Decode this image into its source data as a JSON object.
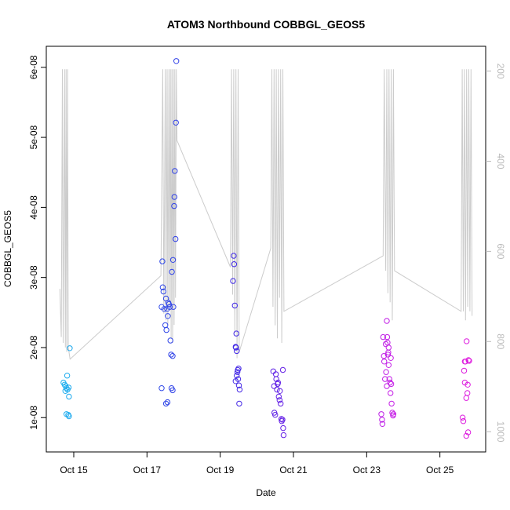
{
  "chart_data": {
    "type": "scatter",
    "title": "ATOM3 Northbound COBBGL_GEOS5",
    "xlabel": "Date",
    "ylabel": "COBBGL_GEOS5",
    "x_ticks": [
      "Oct 15",
      "Oct 17",
      "Oct 19",
      "Oct 21",
      "Oct 23",
      "Oct 25"
    ],
    "x_tick_days": [
      15,
      17,
      19,
      21,
      23,
      25
    ],
    "xlim_days": [
      14.25,
      26.25
    ],
    "y_ticks": [
      "1e-08",
      "2e-08",
      "3e-08",
      "4e-08",
      "5e-08",
      "6e-08"
    ],
    "y_tick_values": [
      1e-08,
      2e-08,
      3e-08,
      4e-08,
      5e-08,
      6e-08
    ],
    "ylim": [
      5.1e-09,
      6.3e-08
    ],
    "y2_ticks": [
      "200",
      "400",
      "600",
      "800",
      "1000"
    ],
    "y2_tick_values": [
      200,
      400,
      600,
      800,
      1000
    ],
    "y2lim": [
      1045,
      145
    ],
    "y2_reversed": true,
    "grid": false,
    "legend": "none",
    "point_color_by_time": [
      "#1ab0ee",
      "#2a4fe8",
      "#3c2be6",
      "#7a1ee6",
      "#c51ee6",
      "#e01ede"
    ],
    "line_color": "#cccccc",
    "series": [
      {
        "marker": "open-circle",
        "points": [
          [
            14.72,
            1.5e-08
          ],
          [
            14.75,
            1.47e-08
          ],
          [
            14.77,
            1.38e-08
          ],
          [
            14.78,
            1.45e-08
          ],
          [
            14.8,
            1.42e-08
          ],
          [
            14.8,
            1.05e-08
          ],
          [
            14.82,
            1.6e-08
          ],
          [
            14.83,
            1.4e-08
          ],
          [
            14.85,
            1.04e-08
          ],
          [
            14.86,
            1.43e-08
          ],
          [
            14.87,
            1.3e-08
          ],
          [
            14.87,
            1.02e-08
          ],
          [
            14.89,
            1.99e-08
          ],
          [
            17.4,
            2.58e-08
          ],
          [
            17.42,
            3.23e-08
          ],
          [
            17.43,
            2.86e-08
          ],
          [
            17.45,
            2.8e-08
          ],
          [
            17.47,
            2.55e-08
          ],
          [
            17.5,
            2.32e-08
          ],
          [
            17.52,
            2.7e-08
          ],
          [
            17.53,
            2.25e-08
          ],
          [
            17.55,
            2.55e-08
          ],
          [
            17.57,
            2.45e-08
          ],
          [
            17.58,
            2.64e-08
          ],
          [
            17.6,
            2.62e-08
          ],
          [
            17.62,
            2.58e-08
          ],
          [
            17.64,
            2.1e-08
          ],
          [
            17.66,
            1.9e-08
          ],
          [
            17.67,
            1.42e-08
          ],
          [
            17.68,
            3.08e-08
          ],
          [
            17.7,
            1.88e-08
          ],
          [
            17.71,
            3.25e-08
          ],
          [
            17.72,
            2.58e-08
          ],
          [
            17.74,
            4.02e-08
          ],
          [
            17.75,
            4.15e-08
          ],
          [
            17.76,
            4.52e-08
          ],
          [
            17.78,
            3.55e-08
          ],
          [
            17.79,
            5.21e-08
          ],
          [
            17.8,
            6.09e-08
          ],
          [
            17.4,
            1.42e-08
          ],
          [
            17.52,
            1.2e-08
          ],
          [
            17.56,
            1.22e-08
          ],
          [
            17.7,
            1.39e-08
          ],
          [
            19.35,
            2.95e-08
          ],
          [
            19.37,
            3.31e-08
          ],
          [
            19.38,
            3.19e-08
          ],
          [
            19.4,
            2.6e-08
          ],
          [
            19.42,
            2.01e-08
          ],
          [
            19.43,
            2e-08
          ],
          [
            19.44,
            2.2e-08
          ],
          [
            19.45,
            1.95e-08
          ],
          [
            19.45,
            1.6e-08
          ],
          [
            19.47,
            1.65e-08
          ],
          [
            19.48,
            1.68e-08
          ],
          [
            19.49,
            1.55e-08
          ],
          [
            19.5,
            1.7e-08
          ],
          [
            19.51,
            1.46e-08
          ],
          [
            19.53,
            1.4e-08
          ],
          [
            19.52,
            1.2e-08
          ],
          [
            19.42,
            1.52e-08
          ],
          [
            20.45,
            1.66e-08
          ],
          [
            20.47,
            1.45e-08
          ],
          [
            20.48,
            1.07e-08
          ],
          [
            20.5,
            1.04e-08
          ],
          [
            20.52,
            1.62e-08
          ],
          [
            20.53,
            1.55e-08
          ],
          [
            20.55,
            1.4e-08
          ],
          [
            20.57,
            1.48e-08
          ],
          [
            20.58,
            1.5e-08
          ],
          [
            20.6,
            1.3e-08
          ],
          [
            20.62,
            1.25e-08
          ],
          [
            20.63,
            1.38e-08
          ],
          [
            20.65,
            1.2e-08
          ],
          [
            20.67,
            9.8e-09
          ],
          [
            20.68,
            9.5e-09
          ],
          [
            20.7,
            9.7e-09
          ],
          [
            20.71,
            1.68e-08
          ],
          [
            20.72,
            8.5e-09
          ],
          [
            20.73,
            7.5e-09
          ],
          [
            23.4,
            1.05e-08
          ],
          [
            23.42,
            9.7e-09
          ],
          [
            23.43,
            9.1e-09
          ],
          [
            23.45,
            2.15e-08
          ],
          [
            23.47,
            1.88e-08
          ],
          [
            23.48,
            1.8e-08
          ],
          [
            23.5,
            1.55e-08
          ],
          [
            23.52,
            2.05e-08
          ],
          [
            23.53,
            1.65e-08
          ],
          [
            23.55,
            2.38e-08
          ],
          [
            23.56,
            2.15e-08
          ],
          [
            23.57,
            2.07e-08
          ],
          [
            23.59,
            1.93e-08
          ],
          [
            23.6,
            1.75e-08
          ],
          [
            23.62,
            1.55e-08
          ],
          [
            23.64,
            1.5e-08
          ],
          [
            23.65,
            1.35e-08
          ],
          [
            23.67,
            1.48e-08
          ],
          [
            23.68,
            1.2e-08
          ],
          [
            23.7,
            1.07e-08
          ],
          [
            23.72,
            1.03e-08
          ],
          [
            23.73,
            1.05e-08
          ],
          [
            23.55,
            1.45e-08
          ],
          [
            23.6,
            2e-08
          ],
          [
            23.66,
            1.85e-08
          ],
          [
            23.58,
            1.9e-08
          ],
          [
            25.62,
            1e-08
          ],
          [
            25.64,
            9.5e-09
          ],
          [
            25.66,
            1.67e-08
          ],
          [
            25.68,
            1.5e-08
          ],
          [
            25.7,
            1.8e-08
          ],
          [
            25.72,
            1.28e-08
          ],
          [
            25.73,
            2.09e-08
          ],
          [
            25.75,
            1.35e-08
          ],
          [
            25.76,
            1.47e-08
          ],
          [
            25.77,
            7.9e-09
          ],
          [
            25.78,
            1.82e-08
          ],
          [
            25.8,
            1.81e-08
          ],
          [
            25.72,
            7.4e-09
          ],
          [
            25.68,
            1.8e-08
          ]
        ]
      },
      {
        "type": "line",
        "axis": "y2",
        "values": [
          [
            14.62,
            683
          ],
          [
            14.66,
            790
          ],
          [
            14.69,
            196
          ],
          [
            14.71,
            803
          ],
          [
            14.73,
            563
          ],
          [
            14.75,
            196
          ],
          [
            14.77,
            813
          ],
          [
            14.79,
            196
          ],
          [
            14.81,
            823
          ],
          [
            14.83,
            196
          ],
          [
            14.85,
            813
          ],
          [
            14.87,
            823
          ],
          [
            14.9,
            839
          ],
          [
            17.38,
            654
          ],
          [
            17.43,
            196
          ],
          [
            17.46,
            738
          ],
          [
            17.5,
            196
          ],
          [
            17.52,
            753
          ],
          [
            17.55,
            196
          ],
          [
            17.57,
            763
          ],
          [
            17.6,
            196
          ],
          [
            17.62,
            723
          ],
          [
            17.64,
            196
          ],
          [
            17.66,
            793
          ],
          [
            17.68,
            196
          ],
          [
            17.7,
            803
          ],
          [
            17.72,
            196
          ],
          [
            17.74,
            763
          ],
          [
            17.76,
            196
          ],
          [
            17.78,
            703
          ],
          [
            17.8,
            196
          ],
          [
            17.82,
            354
          ],
          [
            19.28,
            635
          ],
          [
            19.31,
            196
          ],
          [
            19.34,
            696
          ],
          [
            19.37,
            196
          ],
          [
            19.4,
            782
          ],
          [
            19.43,
            196
          ],
          [
            19.46,
            837
          ],
          [
            19.49,
            196
          ],
          [
            19.52,
            823
          ],
          [
            20.38,
            593
          ],
          [
            20.41,
            196
          ],
          [
            20.44,
            723
          ],
          [
            20.47,
            196
          ],
          [
            20.5,
            764
          ],
          [
            20.53,
            196
          ],
          [
            20.56,
            793
          ],
          [
            20.59,
            196
          ],
          [
            20.62,
            703
          ],
          [
            20.65,
            196
          ],
          [
            20.68,
            803
          ],
          [
            20.71,
            196
          ],
          [
            20.74,
            733
          ],
          [
            23.45,
            610
          ],
          [
            23.48,
            196
          ],
          [
            23.52,
            643
          ],
          [
            23.55,
            196
          ],
          [
            23.58,
            693
          ],
          [
            23.61,
            196
          ],
          [
            23.64,
            713
          ],
          [
            23.67,
            196
          ],
          [
            23.7,
            753
          ],
          [
            23.73,
            196
          ],
          [
            23.76,
            643
          ],
          [
            25.58,
            733
          ],
          [
            25.61,
            196
          ],
          [
            25.64,
            733
          ],
          [
            25.67,
            196
          ],
          [
            25.7,
            753
          ],
          [
            25.73,
            196
          ],
          [
            25.76,
            723
          ],
          [
            25.79,
            196
          ],
          [
            25.82,
            733
          ],
          [
            25.85,
            196
          ],
          [
            25.88,
            743
          ]
        ]
      }
    ]
  }
}
